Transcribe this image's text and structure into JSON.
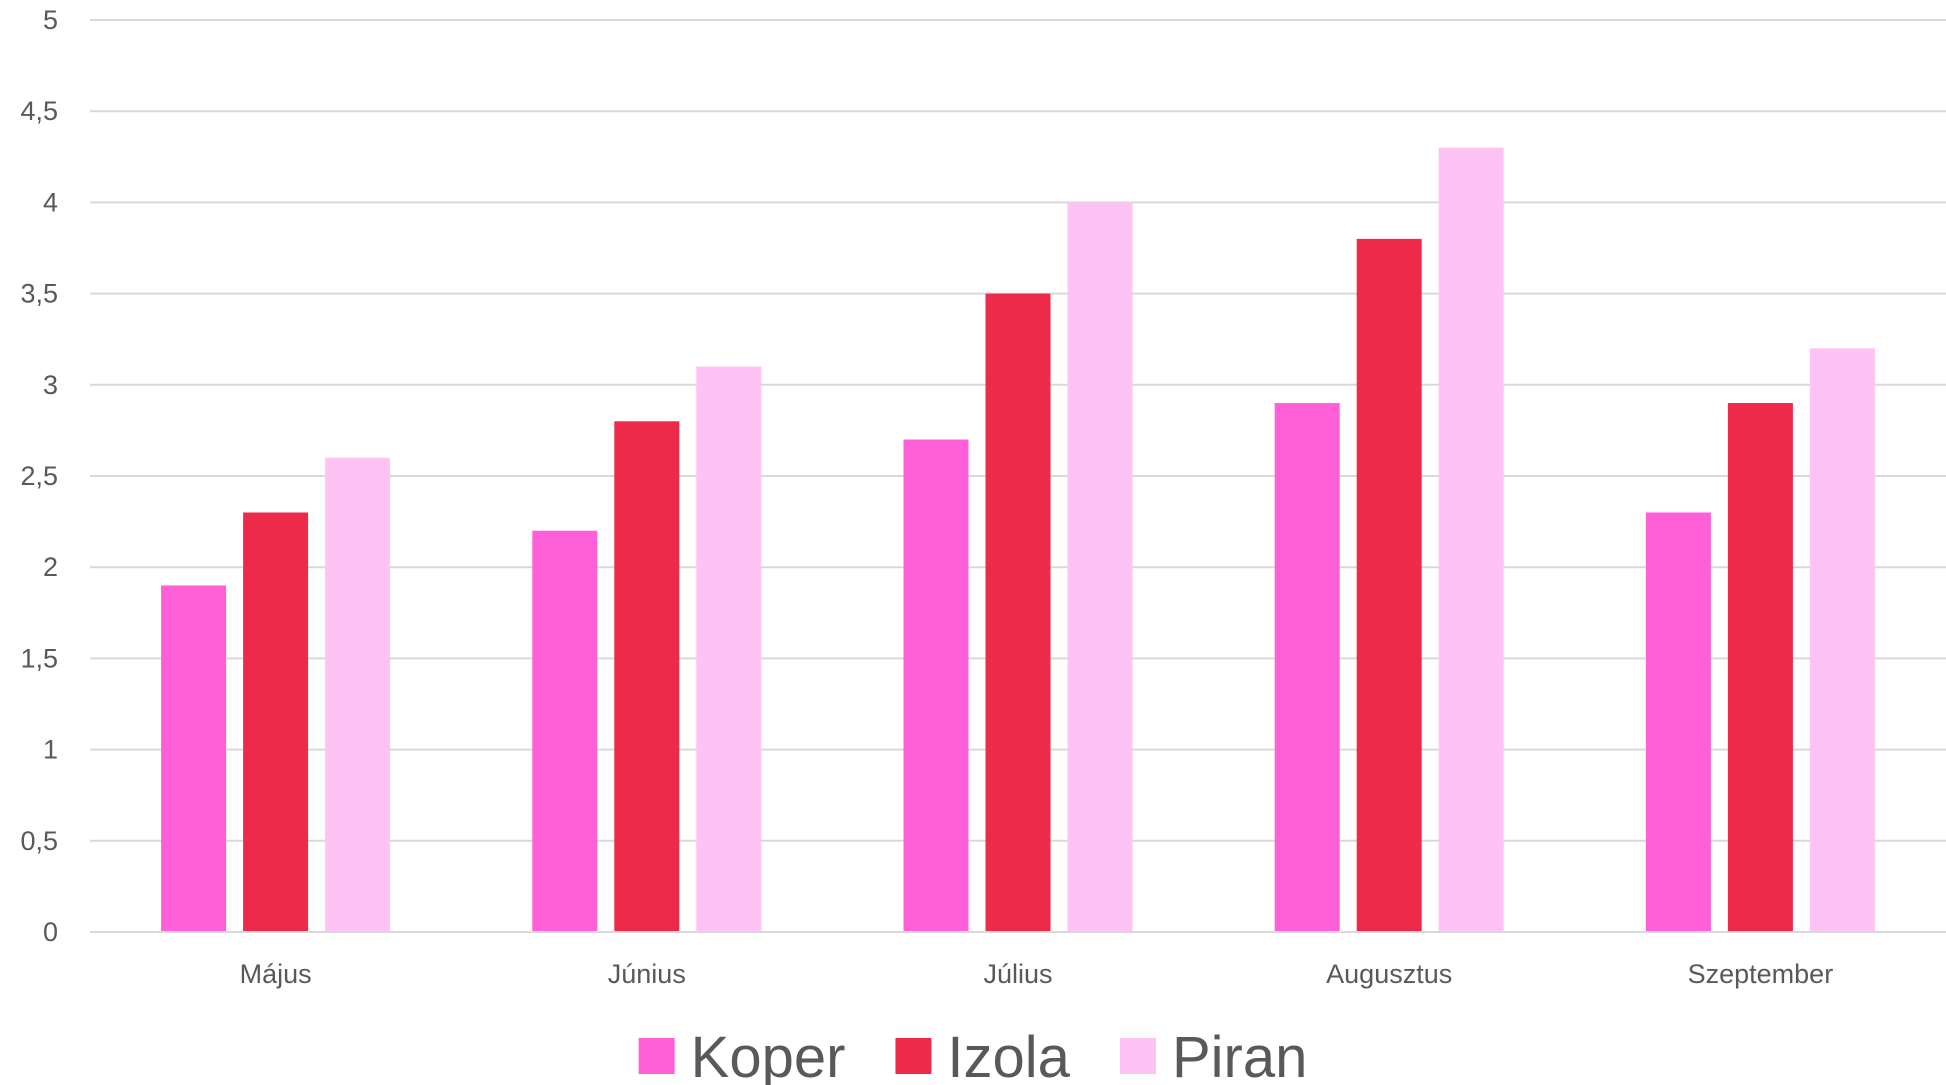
{
  "chart_data": {
    "type": "bar",
    "title": "",
    "xlabel": "",
    "ylabel": "",
    "categories": [
      "Május",
      "Június",
      "Július",
      "Augusztus",
      "Szeptember"
    ],
    "series": [
      {
        "name": "Koper",
        "color": "#FF5FD7",
        "values": [
          1.9,
          2.2,
          2.7,
          2.9,
          2.3
        ]
      },
      {
        "name": "Izola",
        "color": "#EE2A4B",
        "values": [
          2.3,
          2.8,
          3.5,
          3.8,
          2.9
        ]
      },
      {
        "name": "Piran",
        "color": "#FFC2F5",
        "values": [
          2.6,
          3.1,
          4.0,
          4.3,
          3.2
        ]
      }
    ],
    "ylim": [
      0,
      5
    ],
    "yticks": [
      {
        "value": 0,
        "label": "0"
      },
      {
        "value": 0.5,
        "label": "0,5"
      },
      {
        "value": 1,
        "label": "1"
      },
      {
        "value": 1.5,
        "label": "1,5"
      },
      {
        "value": 2,
        "label": "2"
      },
      {
        "value": 2.5,
        "label": "2,5"
      },
      {
        "value": 3,
        "label": "3"
      },
      {
        "value": 3.5,
        "label": "3,5"
      },
      {
        "value": 4,
        "label": "4"
      },
      {
        "value": 4.5,
        "label": "4,5"
      },
      {
        "value": 5,
        "label": "5"
      }
    ],
    "grid": true,
    "legend": "bottom"
  }
}
